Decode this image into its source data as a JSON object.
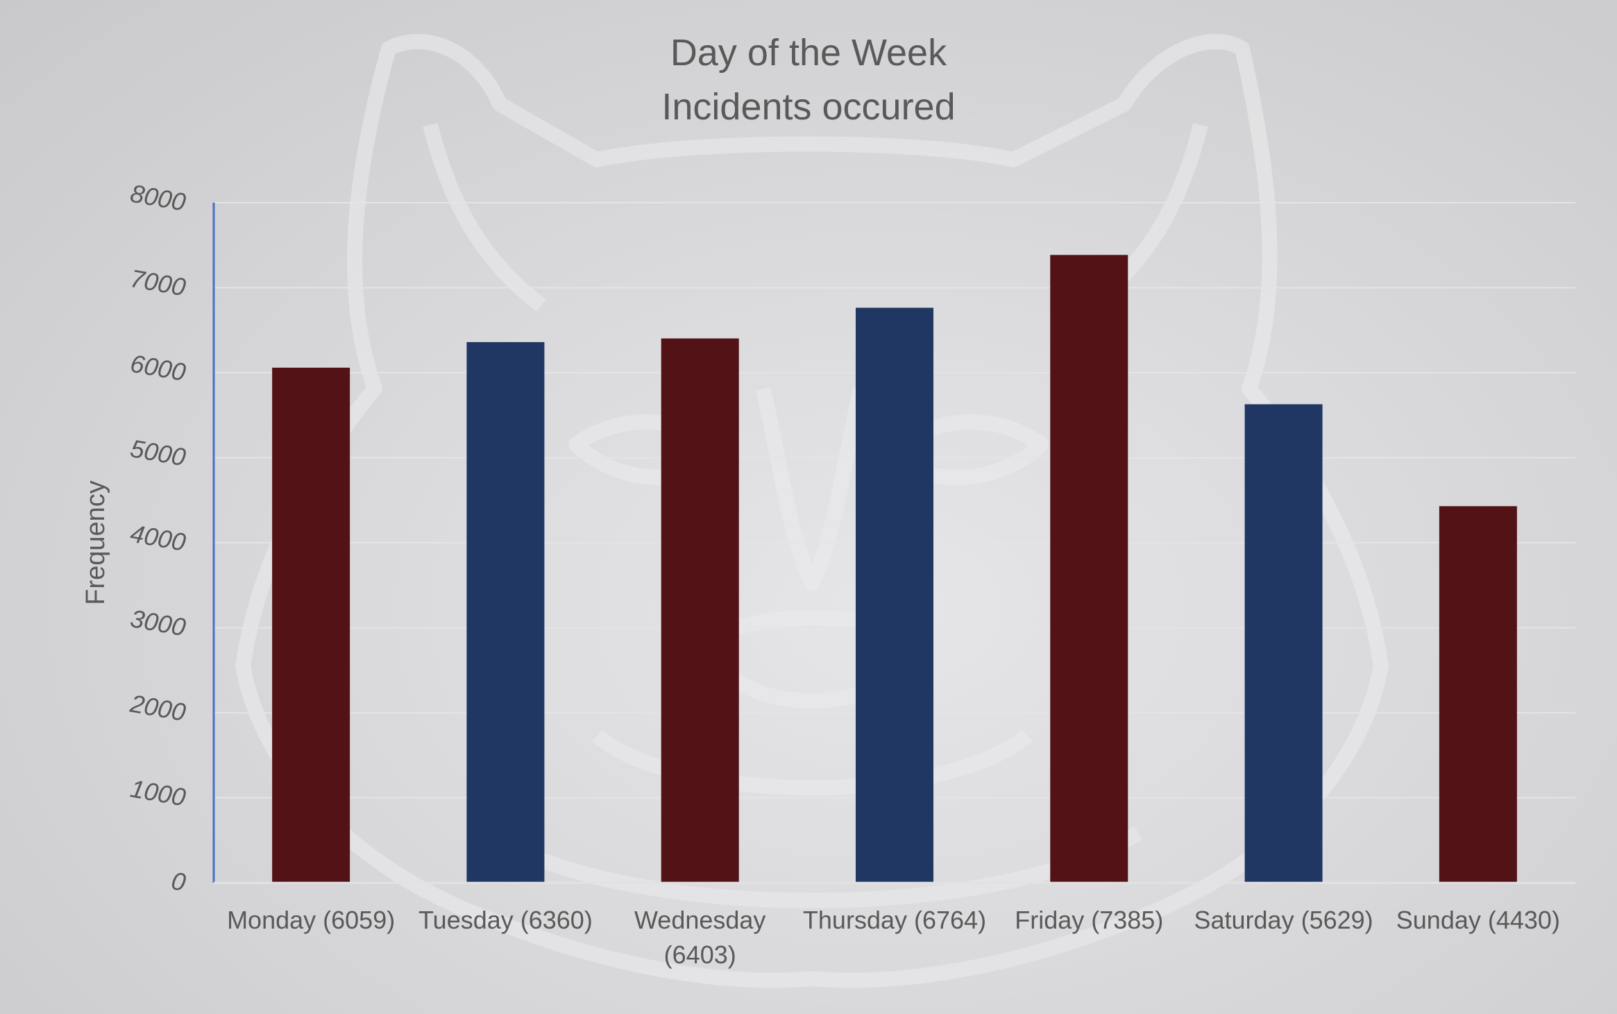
{
  "chart_data": {
    "type": "bar",
    "title": [
      "Day of the Week",
      "Incidents occured"
    ],
    "xlabel": "",
    "ylabel": "Frequency",
    "ylim": [
      0,
      8000
    ],
    "yticks": [
      "0",
      "1000",
      "2000",
      "3000",
      "4000",
      "5000",
      "6000",
      "7000",
      "8000"
    ],
    "categories": [
      [
        "Monday (6059)"
      ],
      [
        "Tuesday (6360)"
      ],
      [
        "Wednesday",
        "(6403)"
      ],
      [
        "Thursday (6764)"
      ],
      [
        "Friday (7385)"
      ],
      [
        "Saturday (5629)"
      ],
      [
        "Sunday (4430)"
      ]
    ],
    "values": [
      6059,
      6360,
      6403,
      6764,
      7385,
      5629,
      4430
    ],
    "bar_colors": [
      "#521216",
      "#1f3762",
      "#521216",
      "#1f3762",
      "#521216",
      "#1f3762",
      "#521216"
    ],
    "grid": true,
    "legend": "none",
    "background_watermark": "wildcat-logo-icon"
  }
}
